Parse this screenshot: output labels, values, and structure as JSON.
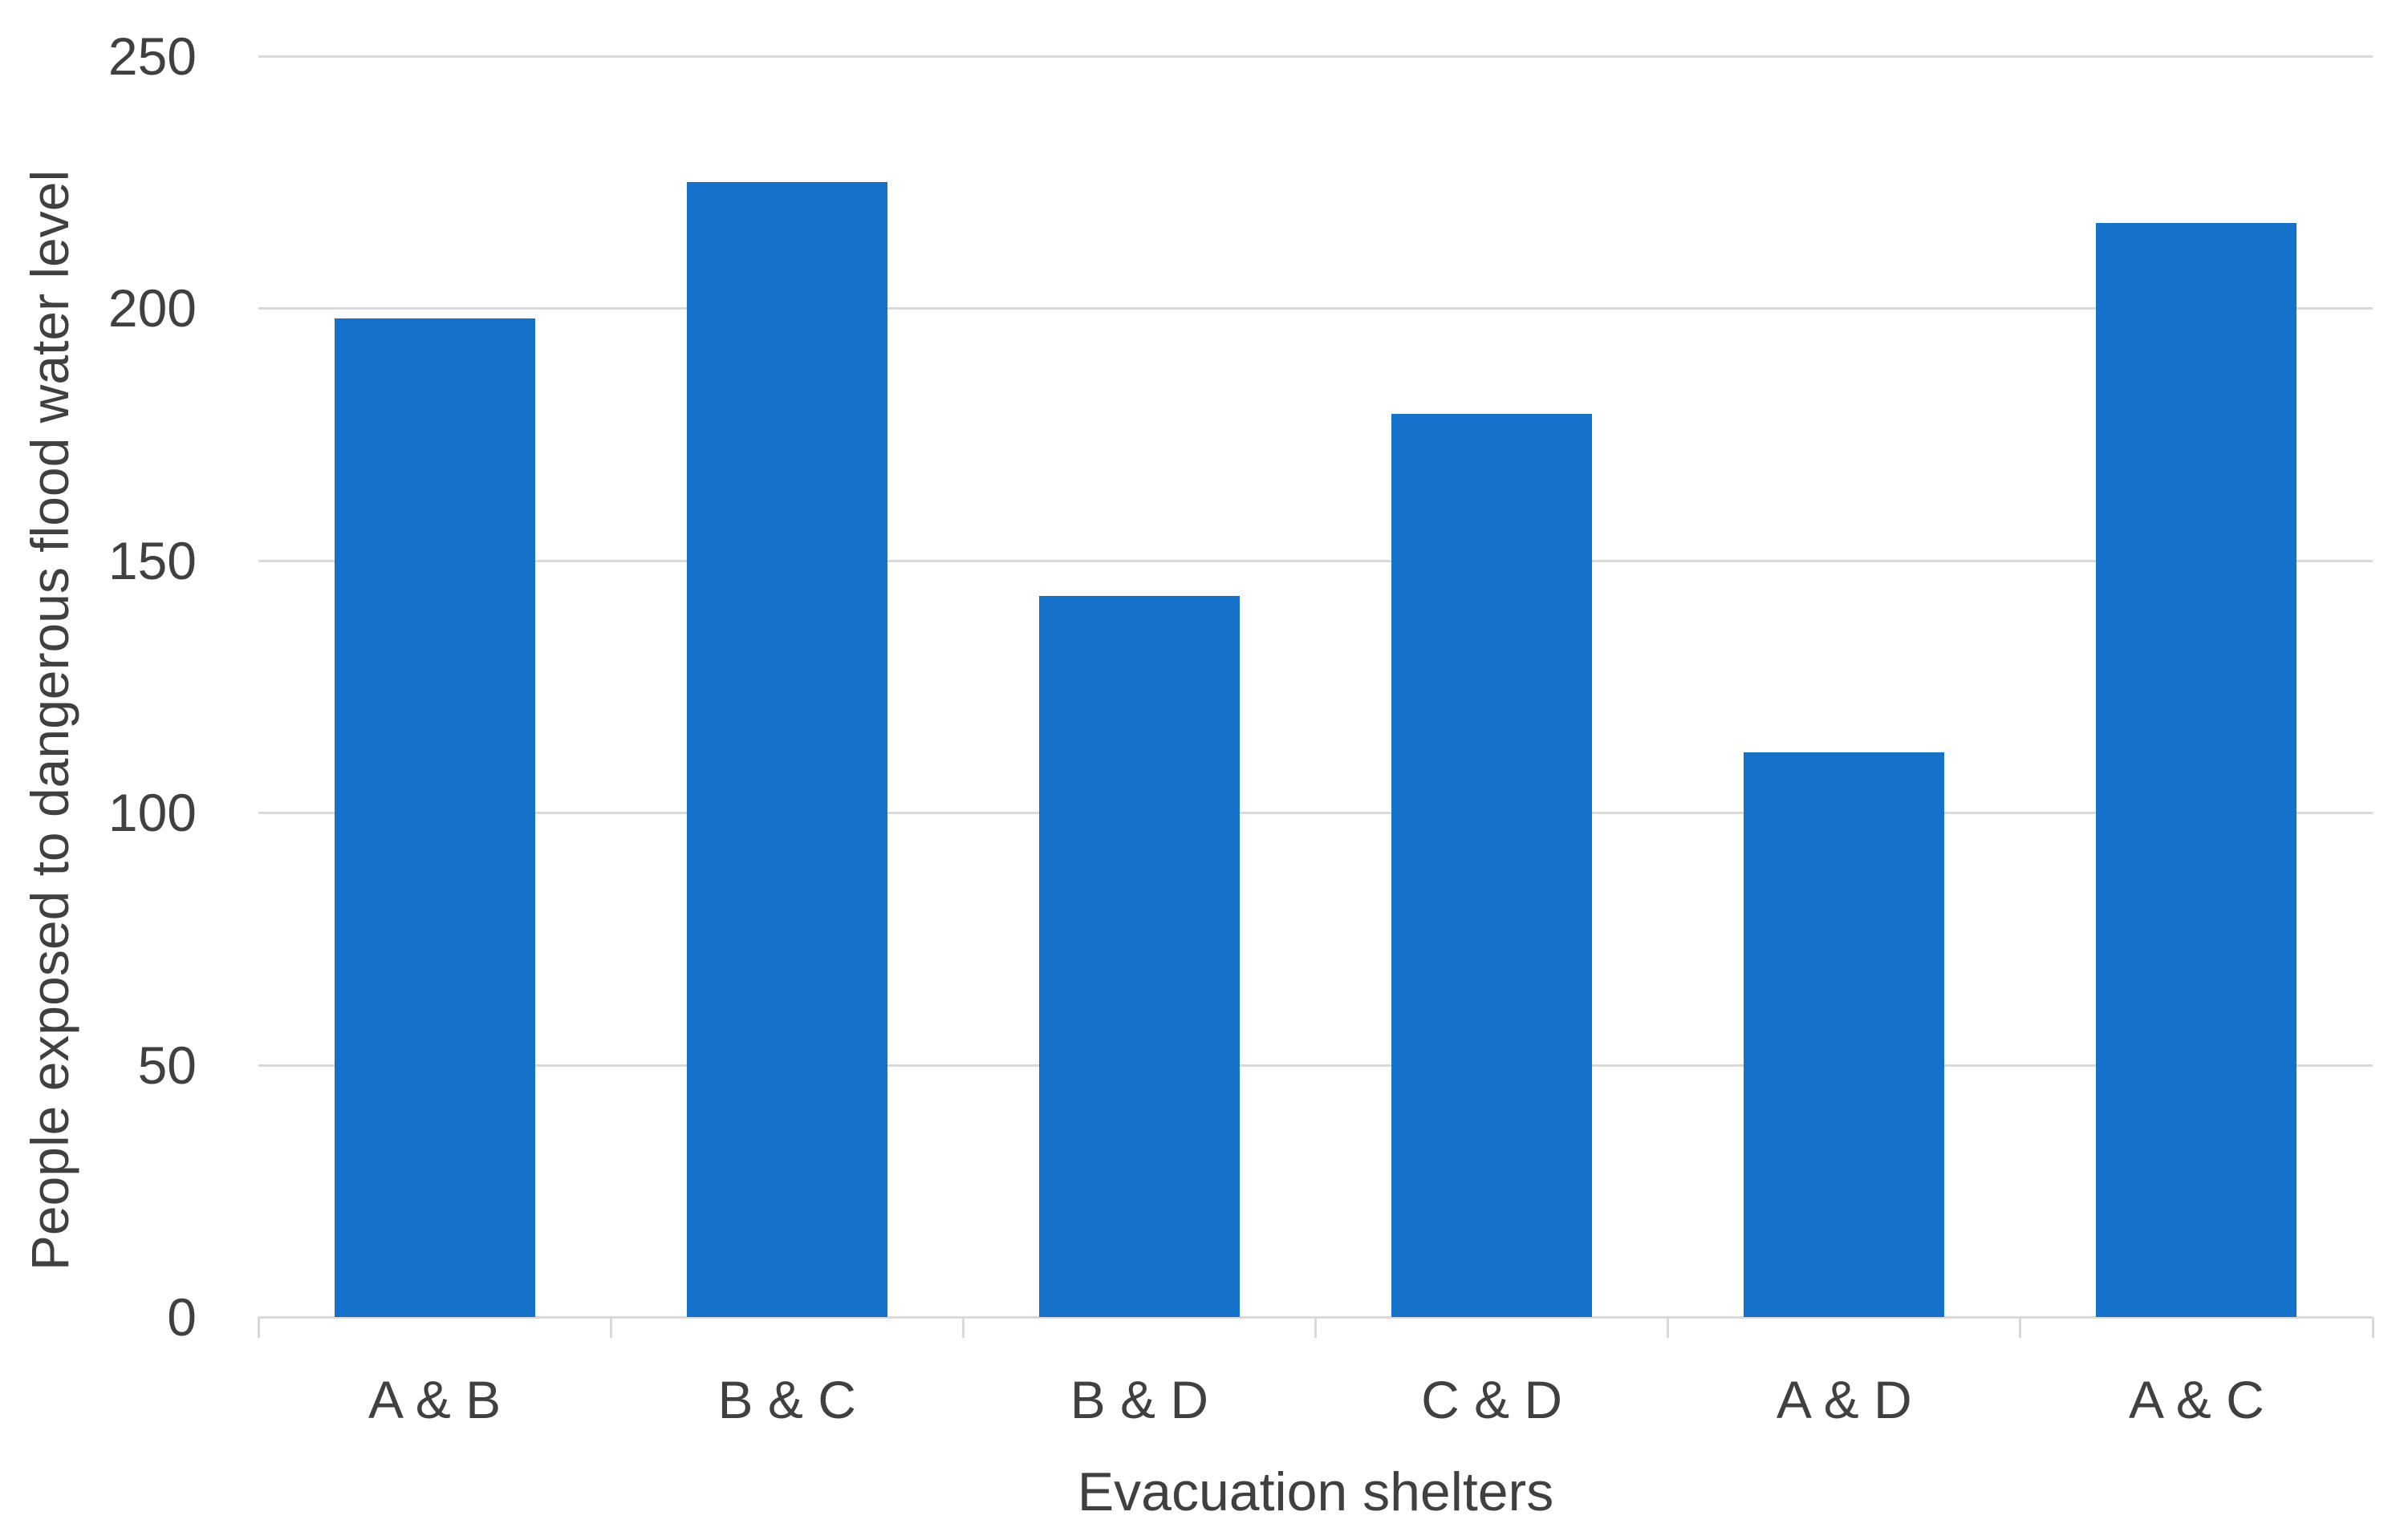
{
  "chart_data": {
    "type": "bar",
    "categories": [
      "A & B",
      "B & C",
      "B & D",
      "C & D",
      "A & D",
      "A & C"
    ],
    "values": [
      198,
      225,
      143,
      179,
      112,
      217
    ],
    "title": "",
    "xlabel": "Evacuation shelters",
    "ylabel": "People exposed to dangerous flood water level",
    "yticks": [
      0,
      50,
      100,
      150,
      200,
      250
    ],
    "ylim": [
      0,
      250
    ],
    "grid": true,
    "legend_position": "none",
    "bar_color": "#1572CB",
    "gridline_color": "#D9D9D9",
    "axis_text_color": "#404040"
  }
}
